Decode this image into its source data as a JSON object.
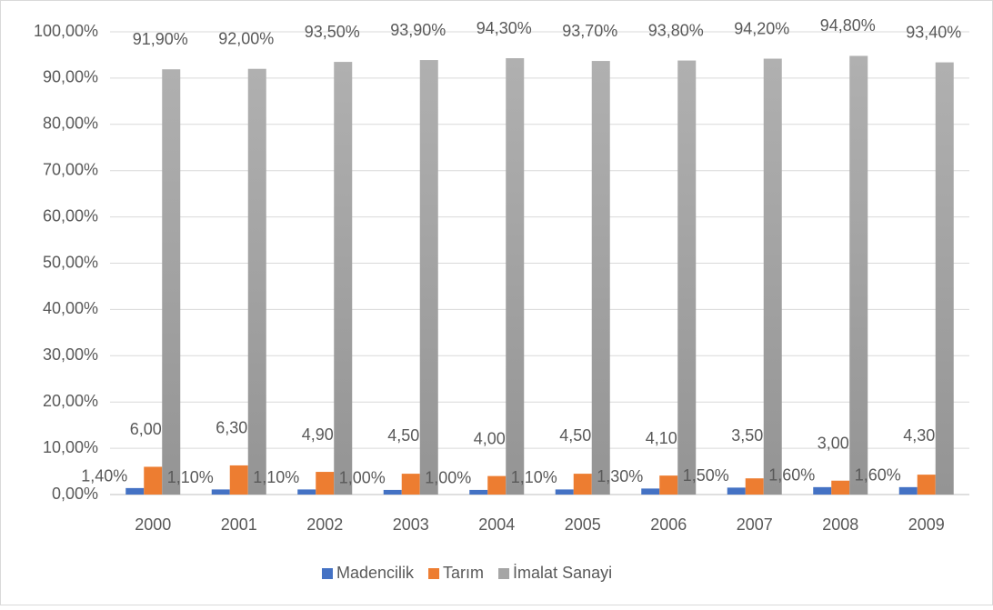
{
  "chart_data": {
    "type": "bar",
    "categories": [
      "2000",
      "2001",
      "2002",
      "2003",
      "2004",
      "2005",
      "2006",
      "2007",
      "2008",
      "2009"
    ],
    "series": [
      {
        "name": "Madencilik",
        "color": "#4472c4",
        "values": [
          1.4,
          1.1,
          1.1,
          1.0,
          1.0,
          1.1,
          1.3,
          1.5,
          1.6,
          1.6
        ],
        "value_labels": [
          "1,40%",
          "1,10%",
          "1,10%",
          "1,00%",
          "1,00%",
          "1,10%",
          "1,30%",
          "1,50%",
          "1,60%",
          "1,60%"
        ]
      },
      {
        "name": "Tarım",
        "color": "#ed7d31",
        "values": [
          6.0,
          6.3,
          4.9,
          4.5,
          4.0,
          4.5,
          4.1,
          3.5,
          3.0,
          4.3
        ],
        "value_labels": [
          "6,00%",
          "6,30%",
          "4,90%",
          "4,50%",
          "4,00%",
          "4,50%",
          "4,10%",
          "3,50%",
          "3,00%",
          "4,30%"
        ]
      },
      {
        "name": "İmalat Sanayi",
        "color": "#a5a5a5",
        "values": [
          91.9,
          92.0,
          93.5,
          93.9,
          94.3,
          93.7,
          93.8,
          94.2,
          94.8,
          93.4
        ],
        "value_labels": [
          "91,90%",
          "92,00%",
          "93,50%",
          "93,90%",
          "94,30%",
          "93,70%",
          "93,80%",
          "94,20%",
          "94,80%",
          "93,40%"
        ]
      }
    ],
    "ylim": [
      0,
      100
    ],
    "yticks": [
      {
        "value": 0,
        "label": "0,00%"
      },
      {
        "value": 10,
        "label": "10,00%"
      },
      {
        "value": 20,
        "label": "20,00%"
      },
      {
        "value": 30,
        "label": "30,00%"
      },
      {
        "value": 40,
        "label": "40,00%"
      },
      {
        "value": 50,
        "label": "50,00%"
      },
      {
        "value": 60,
        "label": "60,00%"
      },
      {
        "value": 70,
        "label": "70,00%"
      },
      {
        "value": 80,
        "label": "80,00%"
      },
      {
        "value": 90,
        "label": "90,00%"
      },
      {
        "value": 100,
        "label": "100,00%"
      }
    ],
    "grid": true,
    "legend": "bottom"
  }
}
